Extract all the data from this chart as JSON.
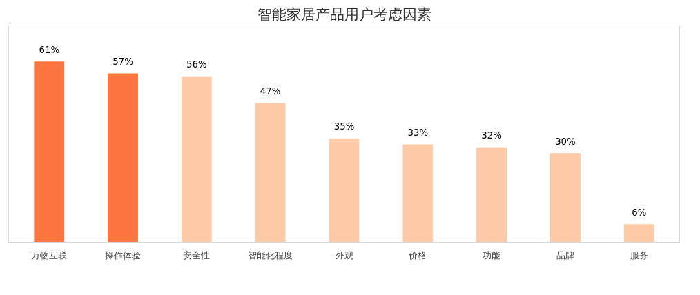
{
  "chart_data": {
    "type": "bar",
    "title": "智能家居产品用户考虑因素",
    "categories": [
      "万物互联",
      "操作体验",
      "安全性",
      "智能化程度",
      "外观",
      "价格",
      "功能",
      "品牌",
      "服务"
    ],
    "values": [
      61,
      57,
      56,
      47,
      35,
      33,
      32,
      30,
      6
    ],
    "colors": [
      "#ff7540",
      "#ff7540",
      "#ffcaa8",
      "#ffcaa8",
      "#ffcaa8",
      "#ffcaa8",
      "#ffcaa8",
      "#ffcaa8",
      "#ffcaa8"
    ],
    "value_labels": [
      "61%",
      "57%",
      "56%",
      "47%",
      "35%",
      "33%",
      "32%",
      "30%",
      "6%"
    ],
    "grid": false
  }
}
